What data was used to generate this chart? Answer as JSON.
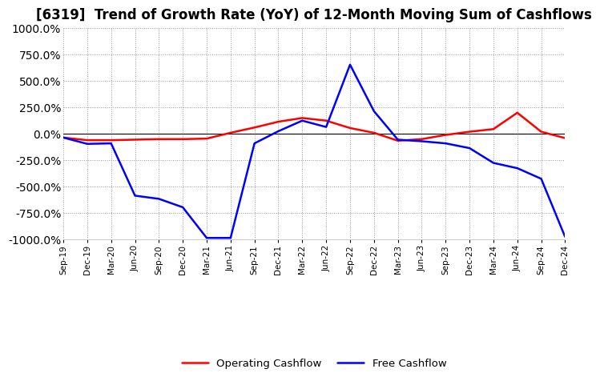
{
  "title": "[6319]  Trend of Growth Rate (YoY) of 12-Month Moving Sum of Cashflows",
  "ylim": [
    -1000,
    1000
  ],
  "yticks": [
    -1000,
    -750,
    -500,
    -250,
    0,
    250,
    500,
    750,
    1000
  ],
  "background_color": "#ffffff",
  "plot_bg_color": "#ffffff",
  "grid_color": "#999999",
  "title_fontsize": 12,
  "x_labels": [
    "Sep-19",
    "Dec-19",
    "Mar-20",
    "Jun-20",
    "Sep-20",
    "Dec-20",
    "Mar-21",
    "Jun-21",
    "Sep-21",
    "Dec-21",
    "Mar-22",
    "Jun-22",
    "Sep-22",
    "Dec-22",
    "Mar-23",
    "Jun-23",
    "Sep-23",
    "Dec-23",
    "Mar-24",
    "Jun-24",
    "Sep-24",
    "Dec-24"
  ],
  "operating_cashflow": [
    -40,
    -65,
    -65,
    -60,
    -55,
    -55,
    -50,
    5,
    55,
    110,
    145,
    120,
    50,
    5,
    -70,
    -55,
    -15,
    15,
    40,
    195,
    15,
    -45
  ],
  "free_cashflow": [
    -40,
    -100,
    -95,
    -590,
    -620,
    -700,
    -990,
    -990,
    -95,
    20,
    120,
    60,
    650,
    210,
    -60,
    -75,
    -95,
    -140,
    -280,
    -330,
    -430,
    -980
  ]
}
